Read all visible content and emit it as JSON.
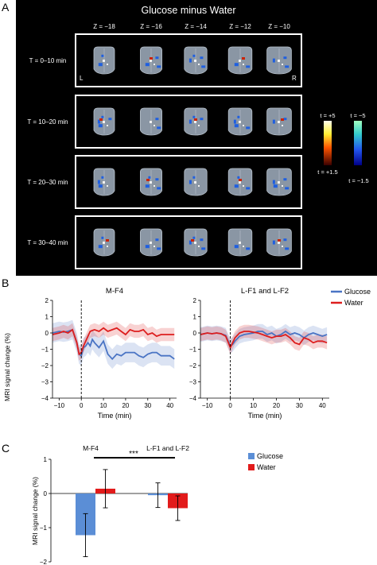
{
  "panel_a": {
    "letter": "A",
    "title": "Glucose minus Water",
    "z_labels": [
      "Z = −18",
      "Z = −16",
      "Z = −14",
      "Z = −12",
      "Z = −10"
    ],
    "t_labels": [
      "T = 0–10 min",
      "T = 10–20 min",
      "T = 20–30 min",
      "T = 30–40 min"
    ],
    "side_left": "L",
    "side_right": "R",
    "colorbar_pos_top": "t = +5",
    "colorbar_pos_bottom": "t = +1.5",
    "colorbar_neg_top": "t = −5",
    "colorbar_neg_bottom": "t = −1.5",
    "colors": {
      "background": "#000000",
      "brain": "#8a96a4",
      "positive": "#cc2200",
      "negative": "#1f5fe0"
    }
  },
  "panel_b": {
    "letter": "B",
    "ylabel": "MRI signal change (%)",
    "legend": [
      "Glucose",
      "Water"
    ],
    "chart_data": [
      {
        "type": "line",
        "title": "M-F4",
        "xlabel": "Time (min)",
        "ylabel": "MRI signal change (%)",
        "xlim": [
          -13,
          43
        ],
        "ylim": [
          -4,
          2
        ],
        "xticks": [
          -10,
          0,
          10,
          20,
          30,
          40
        ],
        "yticks": [
          -4,
          -3,
          -2,
          -1,
          0,
          1,
          2
        ],
        "series": [
          {
            "name": "Glucose",
            "color": "#4a74c4",
            "band": 0.6,
            "x": [
              -13,
              -10,
              -8,
              -6,
              -4,
              -2,
              -1,
              0,
              1,
              2,
              3,
              4,
              5,
              6,
              8,
              10,
              12,
              14,
              16,
              18,
              20,
              22,
              24,
              26,
              28,
              30,
              32,
              34,
              36,
              38,
              40,
              42
            ],
            "y": [
              0,
              0.1,
              0.05,
              0.1,
              0.2,
              -0.6,
              -1.3,
              -1.4,
              -0.9,
              -0.8,
              -0.6,
              -0.8,
              -0.4,
              -0.6,
              -0.9,
              -0.5,
              -1.3,
              -1.6,
              -1.3,
              -1.4,
              -1.2,
              -1.2,
              -1.2,
              -1.4,
              -1.5,
              -1.3,
              -1.2,
              -1.2,
              -1.4,
              -1.4,
              -1.4,
              -1.6
            ]
          },
          {
            "name": "Water",
            "color": "#dd1e1e",
            "band": 0.4,
            "x": [
              -13,
              -10,
              -8,
              -6,
              -4,
              -2,
              -1,
              0,
              1,
              2,
              3,
              4,
              5,
              6,
              8,
              10,
              12,
              14,
              16,
              18,
              20,
              22,
              24,
              26,
              28,
              30,
              32,
              34,
              36,
              38,
              40,
              42
            ],
            "y": [
              -0.1,
              0,
              0.1,
              0,
              0.2,
              -0.6,
              -1.3,
              -1.2,
              -0.8,
              -0.5,
              -0.2,
              0.1,
              0.15,
              0.2,
              0.1,
              0.3,
              0.1,
              0.2,
              0.3,
              0.1,
              -0.1,
              0.2,
              0.1,
              0.1,
              0.2,
              -0.1,
              0,
              -0.2,
              -0.1,
              -0.1,
              -0.1,
              -0.1
            ]
          }
        ]
      },
      {
        "type": "line",
        "title": "L-F1 and L-F2",
        "xlabel": "Time (min)",
        "xlim": [
          -13,
          43
        ],
        "ylim": [
          -4,
          2
        ],
        "xticks": [
          -10,
          0,
          10,
          20,
          30,
          40
        ],
        "yticks": [
          -4,
          -3,
          -2,
          -1,
          0,
          1,
          2
        ],
        "series": [
          {
            "name": "Glucose",
            "color": "#4a74c4",
            "band": 0.45,
            "x": [
              -13,
              -10,
              -8,
              -6,
              -4,
              -2,
              0,
              1,
              2,
              4,
              6,
              8,
              10,
              12,
              14,
              16,
              18,
              20,
              22,
              24,
              26,
              28,
              30,
              32,
              34,
              36,
              38,
              40,
              42
            ],
            "y": [
              -0.1,
              0,
              -0.05,
              0,
              -0.05,
              -0.15,
              -0.8,
              -0.7,
              -0.5,
              -0.2,
              -0.1,
              -0.05,
              0,
              0.1,
              0.1,
              -0.1,
              0,
              -0.2,
              -0.1,
              0.1,
              -0.1,
              0,
              -0.1,
              -0.3,
              -0.1,
              0,
              -0.1,
              -0.2,
              -0.1
            ]
          },
          {
            "name": "Water",
            "color": "#dd1e1e",
            "band": 0.4,
            "x": [
              -13,
              -10,
              -8,
              -6,
              -4,
              -2,
              0,
              1,
              2,
              4,
              6,
              8,
              10,
              12,
              14,
              16,
              18,
              20,
              22,
              24,
              26,
              28,
              30,
              32,
              34,
              36,
              38,
              40,
              42
            ],
            "y": [
              -0.1,
              0,
              -0.05,
              0,
              -0.05,
              -0.2,
              -0.9,
              -0.6,
              -0.3,
              0,
              0.1,
              0.1,
              0.05,
              0,
              -0.1,
              -0.2,
              -0.3,
              -0.2,
              -0.2,
              -0.1,
              -0.3,
              -0.6,
              -0.7,
              -0.3,
              -0.4,
              -0.6,
              -0.5,
              -0.5,
              -0.6
            ]
          }
        ]
      }
    ]
  },
  "panel_c": {
    "letter": "C",
    "chart_data": {
      "type": "bar",
      "categories": [
        "M-F4",
        "L-F1 and L-F2"
      ],
      "ylabel": "MRI signal change (%)",
      "ylim": [
        -2,
        1
      ],
      "yticks": [
        -2,
        -1,
        0,
        1
      ],
      "significance": "***",
      "series": [
        {
          "name": "Glucose",
          "color": "#5b8ed6",
          "values": [
            -1.22,
            -0.05
          ],
          "errors": [
            0.63,
            0.36
          ]
        },
        {
          "name": "Water",
          "color": "#e21b1b",
          "values": [
            0.14,
            -0.43
          ],
          "errors": [
            0.56,
            0.36
          ]
        }
      ]
    }
  }
}
